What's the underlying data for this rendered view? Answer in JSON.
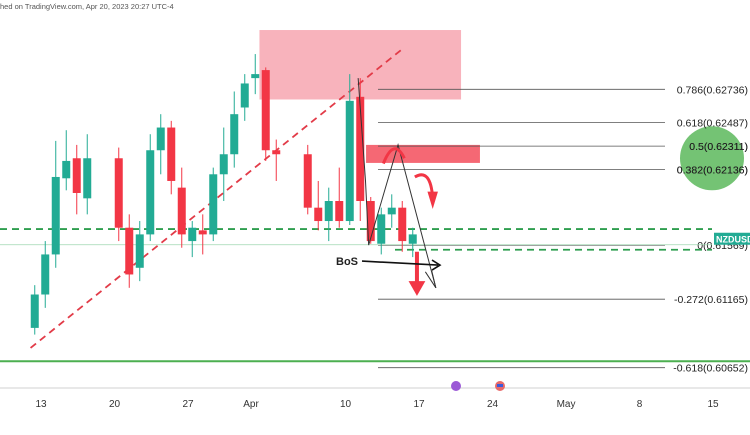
{
  "header": {
    "text": "hed on TradingView.com, Apr 20, 2023 20:27 UTC-4"
  },
  "colors": {
    "up": "#22ab94",
    "down": "#f23645",
    "zone": "#f7a6b0",
    "fib": "#555555",
    "green_line": "#4caf50",
    "dash_green": "#2e9e4f",
    "trend": "#e23b48",
    "circle": "#5cb85c"
  },
  "chart_data": {
    "type": "candlestick",
    "symbol": "NZDUSD",
    "ylim": [
      0.605,
      0.633
    ],
    "x_tick_labels": [
      "13",
      "20",
      "27",
      "Apr",
      "10",
      "17",
      "24",
      "May",
      "8",
      "15"
    ],
    "x_ticks": [
      {
        "label": "13",
        "day": -19
      },
      {
        "label": "20",
        "day": -12
      },
      {
        "label": "27",
        "day": -5
      },
      {
        "label": "Apr",
        "day": 1
      },
      {
        "label": "10",
        "day": 10
      },
      {
        "label": "17",
        "day": 17
      },
      {
        "label": "24",
        "day": 24
      },
      {
        "label": "May",
        "day": 31
      },
      {
        "label": "8",
        "day": 38
      },
      {
        "label": "15",
        "day": 45
      }
    ],
    "candles": [
      {
        "day": -19.6,
        "o": 0.6095,
        "h": 0.6127,
        "l": 0.609,
        "c": 0.612
      },
      {
        "day": -18.6,
        "o": 0.612,
        "h": 0.616,
        "l": 0.611,
        "c": 0.615
      },
      {
        "day": -17.6,
        "o": 0.615,
        "h": 0.6235,
        "l": 0.614,
        "c": 0.6208
      },
      {
        "day": -16.6,
        "o": 0.6207,
        "h": 0.6243,
        "l": 0.6198,
        "c": 0.622
      },
      {
        "day": -15.6,
        "o": 0.6222,
        "h": 0.6232,
        "l": 0.618,
        "c": 0.6196
      },
      {
        "day": -14.6,
        "o": 0.6192,
        "h": 0.624,
        "l": 0.618,
        "c": 0.6222
      },
      {
        "day": -11.6,
        "o": 0.6222,
        "h": 0.623,
        "l": 0.616,
        "c": 0.617
      },
      {
        "day": -10.6,
        "o": 0.617,
        "h": 0.618,
        "l": 0.6125,
        "c": 0.6135
      },
      {
        "day": -9.6,
        "o": 0.614,
        "h": 0.6175,
        "l": 0.613,
        "c": 0.6165
      },
      {
        "day": -8.6,
        "o": 0.6165,
        "h": 0.624,
        "l": 0.616,
        "c": 0.6228
      },
      {
        "day": -7.6,
        "o": 0.6228,
        "h": 0.6255,
        "l": 0.621,
        "c": 0.6245
      },
      {
        "day": -6.6,
        "o": 0.6245,
        "h": 0.625,
        "l": 0.6195,
        "c": 0.6205
      },
      {
        "day": -5.6,
        "o": 0.62,
        "h": 0.6215,
        "l": 0.6155,
        "c": 0.6165
      },
      {
        "day": -4.6,
        "o": 0.616,
        "h": 0.6175,
        "l": 0.6148,
        "c": 0.617
      },
      {
        "day": -3.6,
        "o": 0.6168,
        "h": 0.618,
        "l": 0.615,
        "c": 0.6165
      },
      {
        "day": -2.6,
        "o": 0.6165,
        "h": 0.6215,
        "l": 0.616,
        "c": 0.621
      },
      {
        "day": -1.6,
        "o": 0.621,
        "h": 0.6245,
        "l": 0.619,
        "c": 0.6225
      },
      {
        "day": -0.6,
        "o": 0.6225,
        "h": 0.6272,
        "l": 0.6215,
        "c": 0.6255
      },
      {
        "day": 0.4,
        "o": 0.626,
        "h": 0.6285,
        "l": 0.625,
        "c": 0.6278
      },
      {
        "day": 1.4,
        "o": 0.6282,
        "h": 0.63,
        "l": 0.627,
        "c": 0.6285
      },
      {
        "day": 2.4,
        "o": 0.6288,
        "h": 0.629,
        "l": 0.622,
        "c": 0.6228
      },
      {
        "day": 3.4,
        "o": 0.6228,
        "h": 0.6236,
        "l": 0.6205,
        "c": 0.6225
      },
      {
        "day": 6.4,
        "o": 0.6225,
        "h": 0.6232,
        "l": 0.618,
        "c": 0.6185
      },
      {
        "day": 7.4,
        "o": 0.6185,
        "h": 0.6205,
        "l": 0.6168,
        "c": 0.6175
      },
      {
        "day": 8.4,
        "o": 0.6175,
        "h": 0.62,
        "l": 0.616,
        "c": 0.619
      },
      {
        "day": 9.4,
        "o": 0.619,
        "h": 0.6215,
        "l": 0.617,
        "c": 0.6175
      },
      {
        "day": 10.4,
        "o": 0.6175,
        "h": 0.6285,
        "l": 0.6172,
        "c": 0.6265
      },
      {
        "day": 11.4,
        "o": 0.6268,
        "h": 0.6282,
        "l": 0.6175,
        "c": 0.619
      },
      {
        "day": 12.4,
        "o": 0.619,
        "h": 0.6193,
        "l": 0.6158,
        "c": 0.616
      },
      {
        "day": 13.4,
        "o": 0.6158,
        "h": 0.6185,
        "l": 0.615,
        "c": 0.618
      },
      {
        "day": 14.4,
        "o": 0.618,
        "h": 0.6195,
        "l": 0.617,
        "c": 0.6185
      },
      {
        "day": 15.4,
        "o": 0.6185,
        "h": 0.619,
        "l": 0.6152,
        "c": 0.616
      },
      {
        "day": 16.4,
        "o": 0.6158,
        "h": 0.617,
        "l": 0.6148,
        "c": 0.6165
      }
    ],
    "fib_levels": [
      {
        "ratio": "0.786",
        "value": "0.62736",
        "v": 0.62736
      },
      {
        "ratio": "0.618",
        "value": "0.62487",
        "v": 0.62487
      },
      {
        "ratio": "0.5",
        "value": "0.62311",
        "v": 0.62311
      },
      {
        "ratio": "0.382",
        "value": "0.62136",
        "v": 0.62136
      },
      {
        "ratio": "0",
        "value": "0.61569",
        "v": 0.61569
      },
      {
        "ratio": "-0.272",
        "value": "0.61165",
        "v": 0.61165
      },
      {
        "ratio": "-0.618",
        "value": "0.60652",
        "v": 0.60652
      }
    ],
    "fib_labels": [
      "0.786(0.62736)",
      "0.618(0.62487)",
      "0.5(0.62311)",
      "0.382(0.62136)",
      "0(0.61569)",
      "-0.272(0.61165)",
      "-0.618(0.60652)"
    ],
    "supply_zone": {
      "day_start": 1.8,
      "day_end": 21.0,
      "top": 0.6318,
      "bottom": 0.6266
    },
    "small_zone": {
      "day_start": 11.0,
      "day_end": 22.8,
      "top": 0.6232,
      "bottom": 0.6223
    },
    "trendline": {
      "d1": -20.0,
      "v1": 0.608,
      "d2": 15.6,
      "v2": 0.6305
    },
    "green_support": 0.607,
    "dashed_levels": [
      0.6169,
      0.6158
    ],
    "annotation": "BoS",
    "price_tag": "NZDUSD"
  }
}
